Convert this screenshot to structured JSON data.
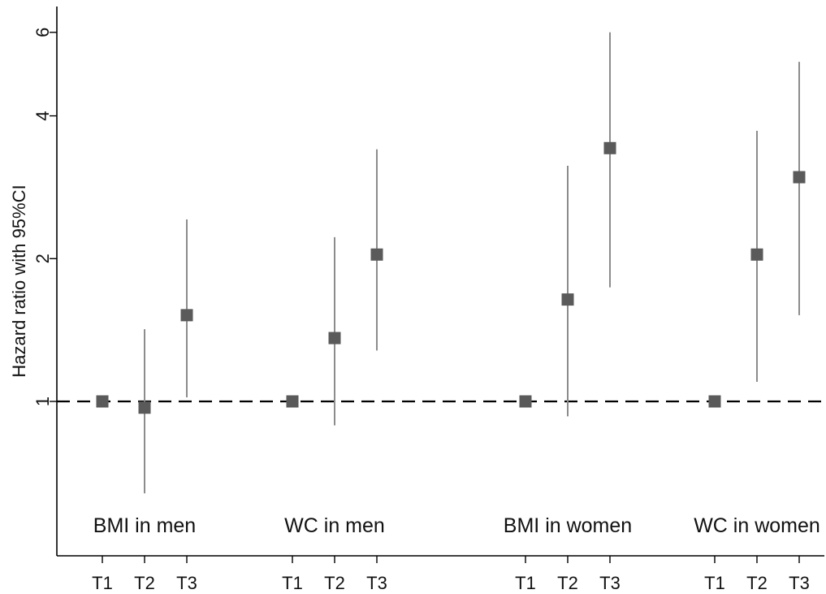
{
  "chart_data": {
    "type": "scatter",
    "title": "",
    "ylabel": "Hazard ratio with 95%CI",
    "xlabel": "",
    "y_scale": "log",
    "ylim": [
      0.6,
      6.6
    ],
    "y_ticks": [
      1,
      2,
      4,
      6
    ],
    "reference_line": 1,
    "grid": false,
    "legend": "none",
    "colors": {
      "marker": "#5a5a5a",
      "ci": "#8c8c8c",
      "reference": "#000000"
    },
    "groups": [
      {
        "label": "BMI in men",
        "points": [
          {
            "tick": "T1",
            "hr": 1.0,
            "lower": null,
            "upper": null
          },
          {
            "tick": "T2",
            "hr": 0.97,
            "lower": 0.64,
            "upper": 1.42
          },
          {
            "tick": "T3",
            "hr": 1.52,
            "lower": 1.02,
            "upper": 2.42
          }
        ]
      },
      {
        "label": "WC in men",
        "points": [
          {
            "tick": "T1",
            "hr": 1.0,
            "lower": null,
            "upper": null
          },
          {
            "tick": "T2",
            "hr": 1.36,
            "lower": 0.89,
            "upper": 2.22
          },
          {
            "tick": "T3",
            "hr": 2.04,
            "lower": 1.28,
            "upper": 3.4
          }
        ]
      },
      {
        "label": "BMI in women",
        "points": [
          {
            "tick": "T1",
            "hr": 1.0,
            "lower": null,
            "upper": null
          },
          {
            "tick": "T2",
            "hr": 1.64,
            "lower": 0.93,
            "upper": 3.14
          },
          {
            "tick": "T3",
            "hr": 3.42,
            "lower": 1.74,
            "upper": 6.0
          }
        ]
      },
      {
        "label": "WC in women",
        "points": [
          {
            "tick": "T1",
            "hr": 1.0,
            "lower": null,
            "upper": null
          },
          {
            "tick": "T2",
            "hr": 2.04,
            "lower": 1.1,
            "upper": 3.72
          },
          {
            "tick": "T3",
            "hr": 2.97,
            "lower": 1.52,
            "upper": 5.2
          }
        ]
      }
    ]
  }
}
